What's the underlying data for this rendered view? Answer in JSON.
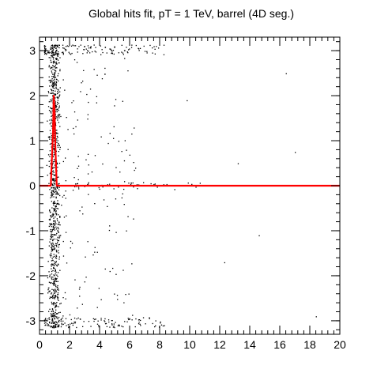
{
  "chart_data": {
    "type": "scatter",
    "title": "Global hits fit, pT = 1 TeV, barrel (4D seg.)",
    "xlabel": "",
    "ylabel": "",
    "xlim": [
      0,
      20
    ],
    "ylim": [
      -3.3,
      3.3
    ],
    "x_ticks": [
      0,
      2,
      4,
      6,
      8,
      10,
      12,
      14,
      16,
      18,
      20
    ],
    "x_tick_labels": [
      "0",
      "2",
      "4",
      "6",
      "8",
      "10",
      "12",
      "14",
      "16",
      "18",
      "20"
    ],
    "y_ticks": [
      -3,
      -2,
      -1,
      0,
      1,
      2,
      3
    ],
    "y_tick_labels": [
      "-3",
      "-2",
      "-1",
      "0",
      "1",
      "2",
      "3"
    ],
    "grid": false,
    "legend": "none",
    "colors": {
      "points": "#000000",
      "fit_line": "#ff0000",
      "frame": "#000000"
    },
    "series": [
      {
        "kind": "points",
        "description_of_distribution": "dense band at x 0.4-1.6 spanning y -3.1..3.1; sparse bands near y=+3.05 and y=-3.05 for x<7; few scattered points elsewhere",
        "points": [
          [
            0.9,
            -2.9
          ],
          [
            1.0,
            -2.2
          ],
          [
            1.1,
            -1.6
          ],
          [
            0.8,
            -1.0
          ],
          [
            1.2,
            -0.5
          ],
          [
            0.7,
            0.3
          ],
          [
            1.3,
            0.9
          ],
          [
            0.9,
            1.6
          ],
          [
            1.1,
            2.3
          ],
          [
            0.8,
            2.9
          ],
          [
            1.4,
            -2.6
          ],
          [
            0.6,
            -1.9
          ],
          [
            2.5,
            3.05
          ],
          [
            3.4,
            3.1
          ],
          [
            4.8,
            3.0
          ],
          [
            6.1,
            3.08
          ],
          [
            2.2,
            -3.05
          ],
          [
            3.6,
            -3.0
          ],
          [
            5.2,
            -3.1
          ],
          [
            6.6,
            -3.02
          ],
          [
            7.5,
            -3.05
          ],
          [
            9.8,
            1.9
          ],
          [
            12.3,
            -1.7
          ],
          [
            13.2,
            0.5
          ],
          [
            14.6,
            -1.1
          ],
          [
            17.0,
            0.75
          ],
          [
            16.4,
            2.5
          ],
          [
            18.4,
            -2.9
          ]
        ]
      },
      {
        "kind": "fit_line",
        "x": [
          0.0,
          0.7,
          0.75,
          0.9,
          0.95,
          1.0,
          1.05,
          1.15,
          1.2,
          20.0
        ],
        "y": [
          0.0,
          0.0,
          0.0,
          1.2,
          2.0,
          1.7,
          0.9,
          0.0,
          0.0,
          0.0
        ]
      }
    ]
  }
}
